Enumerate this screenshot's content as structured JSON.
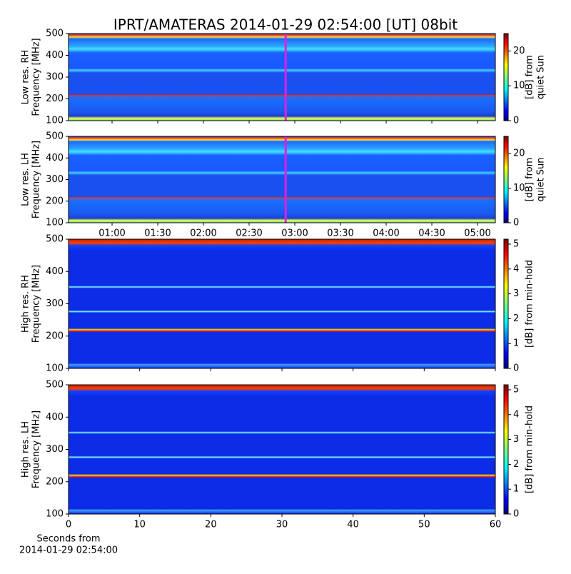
{
  "title": "IPRT/AMATERAS 2014-01-29 02:54:00 [UT]   08bit",
  "chart_data": [
    {
      "type": "heatmap",
      "ylabel": [
        "Low res. RH",
        "Frequency [MHz]"
      ],
      "ylim": [
        100,
        500
      ],
      "yticks": [
        100,
        200,
        300,
        400,
        500
      ],
      "xlim": [
        31.4,
        311.7
      ],
      "marker_x": 174,
      "marker_color": "#e020e0",
      "colorbar_label": [
        "[dB] from",
        "quiet Sun"
      ],
      "clim": [
        0,
        25
      ],
      "cticks": [
        0,
        10,
        20
      ]
    },
    {
      "type": "heatmap",
      "ylabel": [
        "Low res. LH",
        "Frequency [MHz]"
      ],
      "ylim": [
        100,
        500
      ],
      "yticks": [
        100,
        200,
        300,
        400,
        500
      ],
      "xlim": [
        31.4,
        311.7
      ],
      "xticks": [
        {
          "value": 60,
          "label": "01:00"
        },
        {
          "value": 90,
          "label": "01:30"
        },
        {
          "value": 120,
          "label": "02:00"
        },
        {
          "value": 150,
          "label": "02:30"
        },
        {
          "value": 180,
          "label": "03:00"
        },
        {
          "value": 210,
          "label": "03:30"
        },
        {
          "value": 240,
          "label": "04:00"
        },
        {
          "value": 270,
          "label": "04:30"
        },
        {
          "value": 300,
          "label": "05:00"
        }
      ],
      "marker_x": 174,
      "marker_color": "#e020e0",
      "colorbar_label": [
        "[dB] from",
        "quiet Sun"
      ],
      "clim": [
        0,
        25
      ],
      "cticks": [
        0,
        10,
        20
      ]
    },
    {
      "type": "heatmap",
      "ylabel": [
        "High res. RH",
        "Frequency [MHz]"
      ],
      "ylim": [
        100,
        500
      ],
      "yticks": [
        100,
        200,
        300,
        400,
        500
      ],
      "xlim": [
        0,
        60
      ],
      "colorbar_label": [
        "[dB] from min-hold"
      ],
      "clim": [
        0,
        5.2
      ],
      "cticks": [
        0,
        1,
        2,
        3,
        4,
        5
      ]
    },
    {
      "type": "heatmap",
      "ylabel": [
        "High res. LH",
        "Frequency [MHz]"
      ],
      "ylim": [
        100,
        500
      ],
      "yticks": [
        100,
        200,
        300,
        400,
        500
      ],
      "xlim": [
        0,
        60
      ],
      "xticks": [
        0,
        10,
        20,
        30,
        40,
        50,
        60
      ],
      "xlabel": [
        "Seconds from",
        "2014-01-29 02:54:00"
      ],
      "colorbar_label": [
        "[dB] from min-hold"
      ],
      "clim": [
        0,
        5.2
      ],
      "cticks": [
        0,
        1,
        2,
        3,
        4,
        5
      ]
    }
  ]
}
